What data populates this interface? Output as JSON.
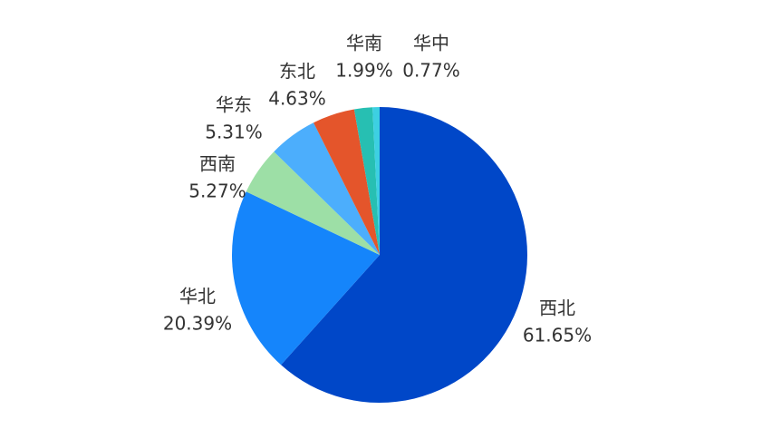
{
  "chart_data": {
    "type": "pie",
    "categories": [
      "西北",
      "华北",
      "西南",
      "华东",
      "东北",
      "华南",
      "华中"
    ],
    "values": [
      61.65,
      20.39,
      5.27,
      5.31,
      4.63,
      1.99,
      0.77
    ],
    "value_labels": [
      "61.65%",
      "20.39%",
      "5.27%",
      "5.31%",
      "4.63%",
      "1.99%",
      "0.77%"
    ],
    "colors": [
      "#0047c8",
      "#1585fb",
      "#9ddfa6",
      "#4caefc",
      "#e4552b",
      "#27bfb2",
      "#3dd0e2"
    ]
  }
}
